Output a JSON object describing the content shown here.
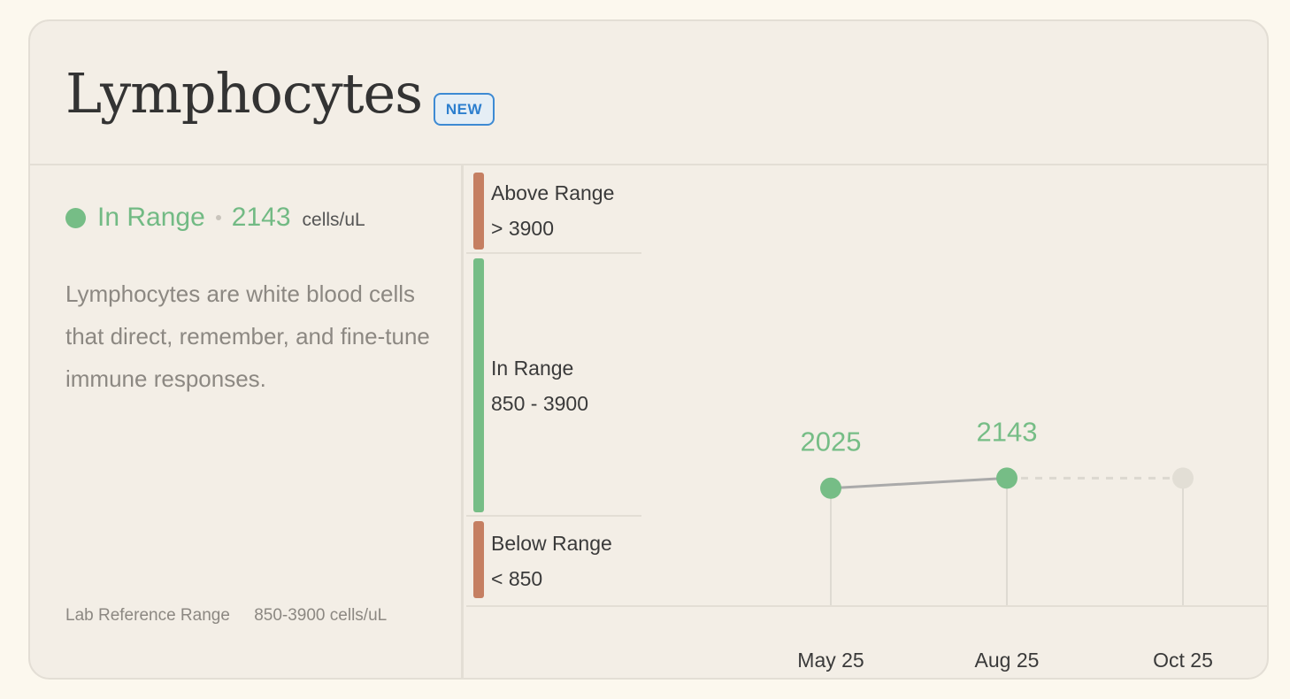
{
  "card": {
    "title": "Lymphocytes",
    "badge": "NEW"
  },
  "status": {
    "label": "In Range",
    "value": "2143",
    "unit": "cells/uL",
    "color": "#72ba84"
  },
  "description": "Lymphocytes are white blood cells that direct, remember, and fine-tune immune responses.",
  "reference": {
    "label": "Lab Reference Range",
    "value": "850-3900 cells/uL"
  },
  "ranges": [
    {
      "label": "Above Range",
      "range": "> 3900",
      "color": "#c57f62"
    },
    {
      "label": "In Range",
      "range": "850 - 3900",
      "color": "#76bd86"
    },
    {
      "label": "Below Range",
      "range": "< 850",
      "color": "#c57f62"
    }
  ],
  "chart_data": {
    "type": "line",
    "x": [
      "May 25",
      "Aug 25",
      "Oct 25"
    ],
    "series": [
      {
        "values": [
          2025,
          2143,
          null
        ],
        "point_labels": [
          "2025",
          "2143",
          ""
        ]
      }
    ],
    "ylim": [
      850,
      3900
    ],
    "colors": {
      "point": "#76bd86",
      "line": "#aaaaaa",
      "future_point": "#e2ded5",
      "future_line": "#dcd8d0"
    }
  }
}
